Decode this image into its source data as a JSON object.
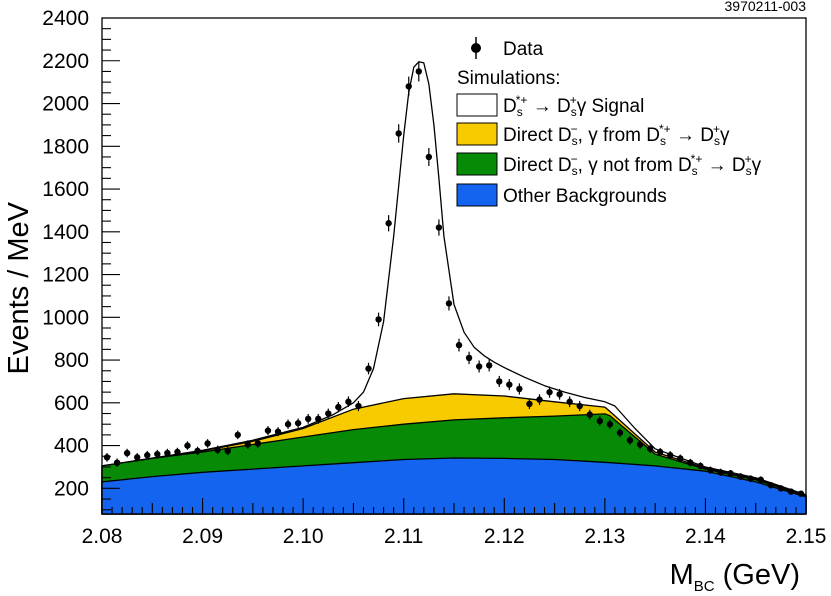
{
  "figure_id": "3970211-003",
  "chart_data": {
    "type": "area",
    "xlabel_main": "M",
    "xlabel_sub": "BC",
    "xlabel_unit": " (GeV)",
    "ylabel": "Events / MeV",
    "xlim": [
      2.08,
      2.15
    ],
    "ylim": [
      80,
      2400
    ],
    "xticks": [
      2.08,
      2.09,
      2.1,
      2.11,
      2.12,
      2.13,
      2.14,
      2.15
    ],
    "xtick_labels": [
      "2.08",
      "2.09",
      "2.10",
      "2.11",
      "2.12",
      "2.13",
      "2.14",
      "2.15"
    ],
    "yticks": [
      200,
      400,
      600,
      800,
      1000,
      1200,
      1400,
      1600,
      1800,
      2000,
      2200,
      2400
    ],
    "ytick_labels": [
      "200",
      "400",
      "600",
      "800",
      "1000",
      "1200",
      "1400",
      "1600",
      "1800",
      "2000",
      "2200",
      "2400"
    ],
    "colors": {
      "other": "#1464f0",
      "notfrom": "#078b07",
      "from": "#f7cb00",
      "signal": "#ffffff",
      "stroke": "#000000"
    },
    "legend": {
      "data": "Data",
      "simulations": "Simulations:",
      "signal": {
        "d": "D",
        "sub": "s",
        "sup": "*+",
        "arrow": " → ",
        "d2": "D",
        "sub2": "s",
        "sup2": "+",
        "tail": "γ Signal"
      },
      "from": {
        "prefix": "Direct D",
        "sub": "s",
        "sup": "−",
        "mid": ", γ from D",
        "sub2": "s",
        "sup2": "*+",
        "arrow": " → D",
        "sub3": "s",
        "sup3": "+",
        "tail": "γ"
      },
      "notfrom": {
        "prefix": "Direct D",
        "sub": "s",
        "sup": "−",
        "mid": ", γ not from D",
        "sub2": "s",
        "sup2": "*+",
        "arrow": " → D",
        "sub3": "s",
        "sup3": "+",
        "tail": "γ"
      },
      "other": "Other Backgrounds"
    },
    "series": [
      {
        "name": "Other Backgrounds",
        "x": [
          2.08,
          2.085,
          2.09,
          2.095,
          2.1,
          2.105,
          2.11,
          2.115,
          2.12,
          2.125,
          2.13,
          2.135,
          2.14,
          2.145,
          2.15
        ],
        "y": [
          230,
          255,
          275,
          290,
          305,
          320,
          335,
          342,
          340,
          335,
          322,
          305,
          280,
          230,
          160
        ]
      },
      {
        "name": "Direct Ds-, gamma not from Ds*+ -> Ds+ gamma",
        "x": [
          2.08,
          2.085,
          2.09,
          2.095,
          2.1,
          2.105,
          2.11,
          2.115,
          2.12,
          2.125,
          2.13,
          2.1305,
          2.135,
          2.14,
          2.145,
          2.15
        ],
        "y": [
          305,
          340,
          370,
          405,
          440,
          475,
          500,
          520,
          530,
          538,
          548,
          540,
          360,
          290,
          240,
          165
        ]
      },
      {
        "name": "Direct Ds-, gamma from Ds*+ -> Ds+ gamma",
        "x": [
          2.08,
          2.09,
          2.095,
          2.1,
          2.105,
          2.11,
          2.115,
          2.12,
          2.125,
          2.13,
          2.1305,
          2.135,
          2.14,
          2.145,
          2.15
        ],
        "y": [
          305,
          375,
          420,
          480,
          570,
          620,
          642,
          632,
          605,
          580,
          560,
          370,
          295,
          245,
          165
        ]
      },
      {
        "name": "Signal",
        "x": [
          2.08,
          2.09,
          2.095,
          2.1,
          2.103,
          2.105,
          2.106,
          2.107,
          2.108,
          2.109,
          2.11,
          2.1105,
          2.111,
          2.1115,
          2.112,
          2.1125,
          2.113,
          2.1135,
          2.114,
          2.115,
          2.116,
          2.117,
          2.118,
          2.119,
          2.12,
          2.122,
          2.124,
          2.126,
          2.128,
          2.13,
          2.131,
          2.133,
          2.135,
          2.14,
          2.145,
          2.15
        ],
        "y": [
          305,
          378,
          425,
          485,
          545,
          600,
          650,
          760,
          980,
          1380,
          1850,
          2050,
          2170,
          2195,
          2190,
          2090,
          1900,
          1650,
          1380,
          1060,
          930,
          860,
          820,
          790,
          765,
          720,
          680,
          650,
          625,
          605,
          585,
          480,
          385,
          300,
          250,
          170
        ]
      }
    ],
    "data_points": {
      "x": [
        2.0805,
        2.0815,
        2.0825,
        2.0835,
        2.0845,
        2.0855,
        2.0865,
        2.0875,
        2.0885,
        2.0895,
        2.0905,
        2.0915,
        2.0925,
        2.0935,
        2.0945,
        2.0955,
        2.0965,
        2.0975,
        2.0985,
        2.0995,
        2.1005,
        2.1015,
        2.1025,
        2.1035,
        2.1045,
        2.1055,
        2.1065,
        2.1075,
        2.1085,
        2.1095,
        2.1105,
        2.1115,
        2.1125,
        2.1135,
        2.1145,
        2.1155,
        2.1165,
        2.1175,
        2.1185,
        2.1195,
        2.1205,
        2.1215,
        2.1225,
        2.1235,
        2.1245,
        2.1255,
        2.1265,
        2.1275,
        2.1285,
        2.1295,
        2.1305,
        2.1315,
        2.1325,
        2.1335,
        2.1345,
        2.1355,
        2.1365,
        2.1375,
        2.1385,
        2.1395,
        2.1405,
        2.1415,
        2.1425,
        2.1435,
        2.1445,
        2.1455,
        2.1465,
        2.1475,
        2.1485,
        2.1495
      ],
      "y": [
        345,
        320,
        365,
        345,
        355,
        360,
        365,
        370,
        400,
        375,
        410,
        380,
        375,
        450,
        405,
        410,
        470,
        465,
        500,
        505,
        525,
        525,
        550,
        580,
        605,
        585,
        760,
        990,
        1440,
        1860,
        2080,
        2150,
        1750,
        1420,
        1065,
        870,
        810,
        770,
        775,
        700,
        685,
        665,
        595,
        615,
        650,
        640,
        605,
        585,
        545,
        515,
        500,
        460,
        425,
        405,
        385,
        370,
        355,
        340,
        320,
        305,
        285,
        275,
        270,
        255,
        245,
        240,
        215,
        200,
        185,
        175
      ],
      "err": [
        20,
        20,
        20,
        20,
        20,
        20,
        20,
        20,
        20,
        20,
        20,
        20,
        20,
        20,
        20,
        20,
        21,
        21,
        22,
        22,
        23,
        23,
        23,
        24,
        25,
        24,
        27,
        32,
        38,
        43,
        46,
        47,
        42,
        38,
        33,
        30,
        29,
        28,
        28,
        26,
        26,
        26,
        24,
        25,
        26,
        25,
        25,
        24,
        23,
        23,
        22,
        21,
        21,
        20,
        20,
        19,
        19,
        18,
        18,
        17,
        17,
        17,
        16,
        16,
        16,
        16,
        15,
        14,
        14,
        13
      ]
    }
  }
}
